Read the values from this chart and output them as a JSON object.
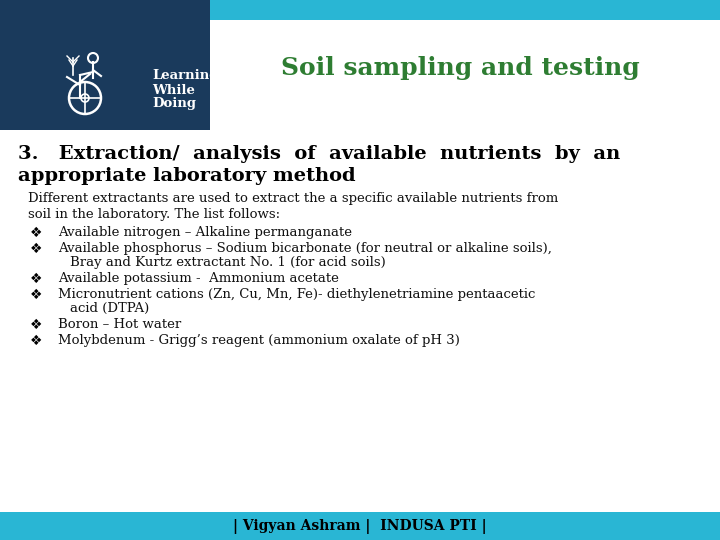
{
  "title": "Soil sampling and testing",
  "title_color": "#2e7d32",
  "header_bg_color": "#1a3a5c",
  "top_bar_color": "#29b6d4",
  "bottom_bar_color": "#29b6d4",
  "slide_bg_color": "#ffffff",
  "heading_line1": "3.   Extraction/  analysis  of  available  nutrients  by  an",
  "heading_line2": "appropriate laboratory method",
  "heading_fontsize": 14,
  "heading_color": "#000000",
  "intro_line1": "Different extractants are used to extract the a specific available nutrients from",
  "intro_line2": "soil in the laboratory. The list follows:",
  "bullet_items": [
    [
      "Available nitrogen – Alkaline permanganate"
    ],
    [
      "Available phosphorus – Sodium bicarbonate (for neutral or alkaline soils),",
      "Bray and Kurtz extractant No. 1 (for acid soils)"
    ],
    [
      "Available potassium -  Ammonium acetate"
    ],
    [
      "Micronutrient cations (Zn, Cu, Mn, Fe)- diethylenetriamine pentaacetic",
      "acid (DTPA)"
    ],
    [
      "Boron – Hot water"
    ],
    [
      "Molybdenum - Grigg’s reagent (ammonium oxalate of pH 3)"
    ]
  ],
  "footer_text": "| Vigyan Ashram |  INDUSA PTI |",
  "footer_color": "#000000",
  "logo_text_line1": "Learning",
  "logo_text_line2": "While",
  "logo_text_line3": "Doing",
  "body_fontsize": 9.5,
  "bullet_fontsize": 9.5,
  "title_fontsize": 18
}
